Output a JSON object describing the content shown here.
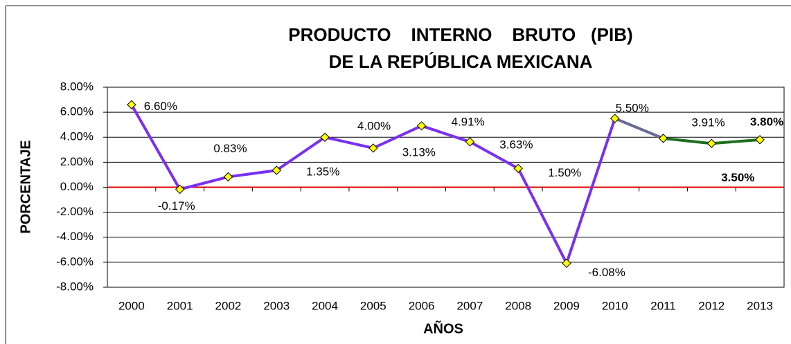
{
  "chart_data": {
    "type": "line",
    "title_lines": [
      "PRODUCTO    INTERNO    BRUTO   (PIB)",
      "DE LA REPÚBLICA MEXICANA"
    ],
    "x_label": "AÑOS",
    "y_label": "PORCENTAJE",
    "categories": [
      "2000",
      "2001",
      "2002",
      "2003",
      "2004",
      "2005",
      "2006",
      "2007",
      "2008",
      "2009",
      "2010",
      "2011",
      "2012",
      "2013"
    ],
    "values": [
      6.6,
      -0.17,
      0.83,
      1.35,
      4.0,
      3.13,
      4.91,
      3.63,
      1.5,
      -6.08,
      5.5,
      3.91,
      3.5,
      3.8
    ],
    "value_labels": [
      "6.60%",
      "-0.17%",
      "0.83%",
      "1.35%",
      "4.00%",
      "3.13%",
      "4.91%",
      "3.63%",
      "1.50%",
      "-6.08%",
      "5.50%",
      "3.91%",
      "3.50%",
      "3.80%"
    ],
    "value_label_colors": [
      "#000000",
      "#000000",
      "#000000",
      "#000000",
      "#000000",
      "#000000",
      "#000000",
      "#000000",
      "#000000",
      "#000000",
      "#000000",
      "#000000",
      "#1f3fc8",
      "#1f3fc8"
    ],
    "segment_colors": [
      "#7a30f0",
      "#7a30f0",
      "#7a30f0",
      "#7a30f0",
      "#7a30f0",
      "#7a30f0",
      "#7a30f0",
      "#7a30f0",
      "#7a30f0",
      "#7a30f0",
      "#6a6a96",
      "#1f6e1f",
      "#1f6e1f"
    ],
    "marker_color": "#ffff00",
    "zero_line_color": "#e00000",
    "ylim": [
      -8,
      8
    ],
    "yticks": [
      {
        "value": -8,
        "label": "-8.00%"
      },
      {
        "value": -6,
        "label": "-6.00%"
      },
      {
        "value": -4,
        "label": "-4.00%"
      },
      {
        "value": -2,
        "label": "-2.00%"
      },
      {
        "value": 0,
        "label": "0.00%"
      },
      {
        "value": 2,
        "label": "2.00%"
      },
      {
        "value": 4,
        "label": "4.00%"
      },
      {
        "value": 6,
        "label": "6.00%"
      },
      {
        "value": 8,
        "label": "8.00%"
      }
    ],
    "grid": true
  }
}
